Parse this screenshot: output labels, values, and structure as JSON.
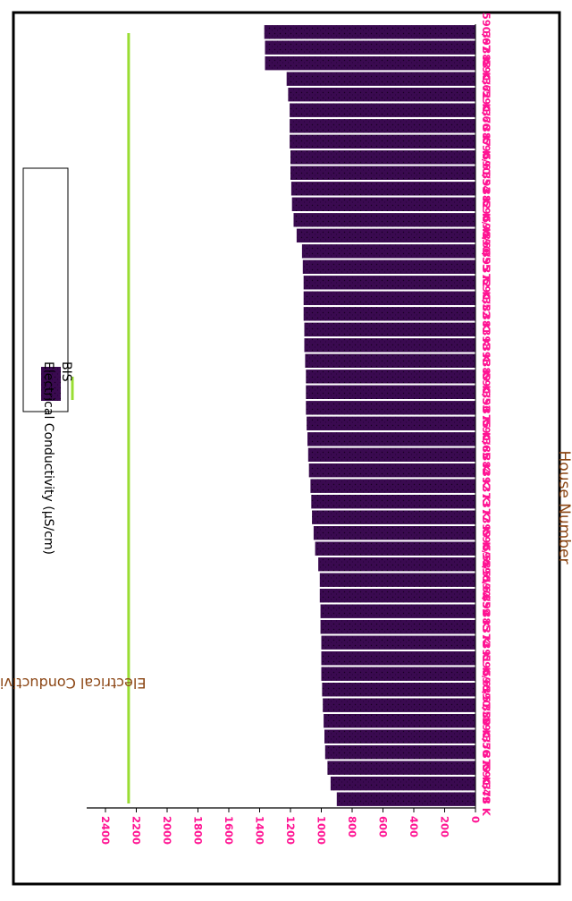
{
  "chart_data": {
    "type": "bar",
    "orientation": "horizontal-rotated",
    "xlabel": "House Number",
    "ylabel": "Electrical Conductivity (µS/cm)",
    "ylim": [
      0,
      2450
    ],
    "yticks": [
      0,
      200,
      400,
      600,
      800,
      1000,
      1200,
      1400,
      1600,
      1800,
      2000,
      2200,
      2400
    ],
    "categories": [
      "378 K",
      "590/49",
      "379 K",
      "376 K",
      "590/56",
      "380 K",
      "590/50",
      "590/57",
      "590/63",
      "391 K",
      "374 K",
      "385 K",
      "394 K",
      "590/59",
      "590/64",
      "590/51",
      "590/58",
      "399 K",
      "377 K",
      "373 K",
      "392 K",
      "384 K",
      "386 K",
      "590/65",
      "375 K",
      "390 K",
      "590/53",
      "389 K",
      "396 K",
      "398 K",
      "381 K",
      "383 K",
      "590/52",
      "372 K",
      "395 K",
      "590/55",
      "590/60",
      "590/48",
      "382 K",
      "393 K",
      "590/54",
      "590/61",
      "387 K",
      "370 K",
      "590/66",
      "371 K",
      "590/62",
      "388 K",
      "397 K",
      "590/67"
    ],
    "series": [
      {
        "name": "Electrical Conductivity (µS/cm)",
        "values": [
          900,
          940,
          960,
          975,
          980,
          985,
          990,
          995,
          1000,
          1000,
          1000,
          1005,
          1005,
          1010,
          1010,
          1020,
          1040,
          1050,
          1060,
          1065,
          1070,
          1080,
          1085,
          1090,
          1095,
          1100,
          1100,
          1100,
          1105,
          1110,
          1110,
          1115,
          1115,
          1115,
          1120,
          1125,
          1160,
          1180,
          1190,
          1195,
          1200,
          1200,
          1205,
          1205,
          1205,
          1215,
          1225,
          1365,
          1365,
          1370
        ],
        "color": "#3a0a50"
      }
    ],
    "reference_line": {
      "name": "BIS",
      "value": 2250,
      "color": "#99dd33"
    },
    "legend": {
      "position": "top-center",
      "entries": [
        "Electrical Conductivity (µS/cm)",
        "BIS"
      ]
    },
    "colors": {
      "tick_labels": "#ff1493",
      "axis_labels": "#8b4513",
      "bar": "#3a0a50",
      "bar_dots": "#1a0028"
    }
  }
}
